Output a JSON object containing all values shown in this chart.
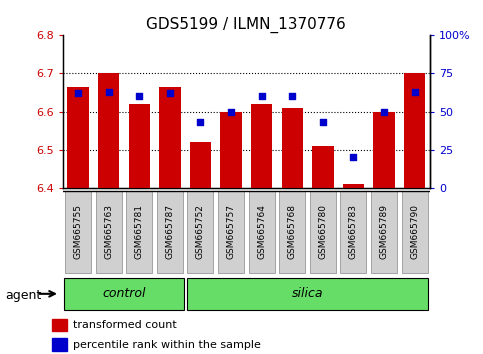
{
  "title": "GDS5199 / ILMN_1370776",
  "samples": [
    "GSM665755",
    "GSM665763",
    "GSM665781",
    "GSM665787",
    "GSM665752",
    "GSM665757",
    "GSM665764",
    "GSM665768",
    "GSM665780",
    "GSM665783",
    "GSM665789",
    "GSM665790"
  ],
  "groups": [
    "control",
    "control",
    "control",
    "control",
    "silica",
    "silica",
    "silica",
    "silica",
    "silica",
    "silica",
    "silica",
    "silica"
  ],
  "transformed_count": [
    6.665,
    6.7,
    6.62,
    6.665,
    6.52,
    6.6,
    6.62,
    6.61,
    6.51,
    6.41,
    6.6,
    6.7
  ],
  "percentile_rank": [
    62,
    63,
    60,
    62,
    43,
    50,
    60,
    60,
    43,
    20,
    50,
    63
  ],
  "ylim_left": [
    6.4,
    6.8
  ],
  "ylim_right": [
    0,
    100
  ],
  "yticks_left": [
    6.4,
    6.5,
    6.6,
    6.7,
    6.8
  ],
  "yticks_right": [
    0,
    25,
    50,
    75,
    100
  ],
  "bar_color": "#cc0000",
  "dot_color": "#0000cc",
  "bar_bottom": 6.4,
  "control_color": "#66dd66",
  "silica_color": "#66dd66",
  "agent_label": "agent",
  "group_label_control": "control",
  "group_label_silica": "silica",
  "legend_red": "transformed count",
  "legend_blue": "percentile rank within the sample",
  "title_fontsize": 11,
  "axis_label_color_red": "#cc0000",
  "axis_label_color_blue": "#0000cc",
  "tick_box_color": "#d0d0d0",
  "n_control": 4,
  "n_silica": 8
}
